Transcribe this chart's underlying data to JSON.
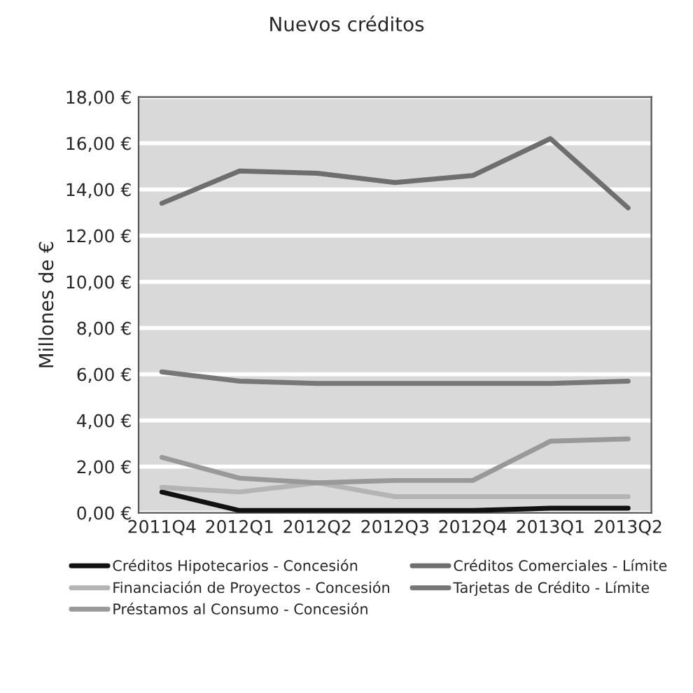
{
  "chart_data": {
    "type": "line",
    "title": "Nuevos créditos",
    "ylabel": "Millones de €",
    "categories": [
      "2011Q4",
      "2012Q1",
      "2012Q2",
      "2012Q3",
      "2012Q4",
      "2013Q1",
      "2013Q2"
    ],
    "series": [
      {
        "name": "Créditos Hipotecarios - Concesión",
        "color": "#111111",
        "values": [
          0.9,
          0.1,
          0.1,
          0.1,
          0.1,
          0.2,
          0.2
        ]
      },
      {
        "name": "Financiación de Proyectos - Concesión",
        "color": "#b4b4b4",
        "values": [
          1.1,
          0.9,
          1.3,
          0.7,
          0.7,
          0.7,
          0.7
        ]
      },
      {
        "name": "Préstamos al Consumo - Concesión",
        "color": "#999999",
        "values": [
          2.4,
          1.5,
          1.3,
          1.4,
          1.4,
          3.1,
          3.2
        ]
      },
      {
        "name": "Créditos Comerciales - Límite",
        "color": "#6e6e6e",
        "values": [
          13.4,
          14.8,
          14.7,
          14.3,
          14.6,
          16.2,
          13.2
        ]
      },
      {
        "name": "Tarjetas de Crédito - Límite",
        "color": "#777777",
        "values": [
          6.1,
          5.7,
          5.6,
          5.6,
          5.6,
          5.6,
          5.7
        ]
      }
    ],
    "ylim": [
      0,
      18
    ],
    "yticks": [
      {
        "value": 0,
        "label": "0,00 €"
      },
      {
        "value": 2,
        "label": "2,00 €"
      },
      {
        "value": 4,
        "label": "4,00 €"
      },
      {
        "value": 6,
        "label": "6,00 €"
      },
      {
        "value": 8,
        "label": "8,00 €"
      },
      {
        "value": 10,
        "label": "10,00 €"
      },
      {
        "value": 12,
        "label": "12,00 €"
      },
      {
        "value": 14,
        "label": "14,00 €"
      },
      {
        "value": 16,
        "label": "16,00 €"
      },
      {
        "value": 18,
        "label": "18,00 €"
      }
    ],
    "grid": "y",
    "legend": "bottom",
    "marker": "none",
    "line_style": "solid"
  }
}
